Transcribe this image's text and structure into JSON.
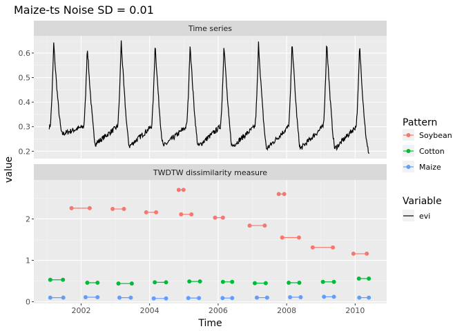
{
  "chart_data": {
    "type": "faceted line and segment chart",
    "title": "Maize-ts Noise SD =  0.01",
    "xlabel": "Time",
    "ylabel": "value",
    "x_ticks": [
      "2002",
      "2004",
      "2006",
      "2008",
      "2010"
    ],
    "grid": true,
    "legend_position": "right",
    "panels": [
      {
        "strip": "Time series",
        "y_ticks": [
          "0.2",
          "0.3",
          "0.4",
          "0.5",
          "0.6"
        ],
        "ylim": [
          0.17,
          0.67
        ],
        "series": [
          {
            "name": "evi",
            "type": "line",
            "color": "#000000",
            "peaks": [
              {
                "year": 2001.2,
                "base": 0.24,
                "peak": 0.64
              },
              {
                "year": 2002.18,
                "base": 0.2,
                "peak": 0.63
              },
              {
                "year": 2003.17,
                "base": 0.19,
                "peak": 0.65
              },
              {
                "year": 2004.16,
                "base": 0.19,
                "peak": 0.64
              },
              {
                "year": 2005.18,
                "base": 0.19,
                "peak": 0.64
              },
              {
                "year": 2006.17,
                "base": 0.19,
                "peak": 0.64
              },
              {
                "year": 2007.18,
                "base": 0.18,
                "peak": 0.64
              },
              {
                "year": 2008.16,
                "base": 0.18,
                "peak": 0.65
              },
              {
                "year": 2009.17,
                "base": 0.18,
                "peak": 0.65
              },
              {
                "year": 2010.13,
                "base": 0.18,
                "peak": 0.63
              }
            ],
            "start_value": 0.3,
            "end_value": 0.19,
            "x_range": [
              2001.07,
              2010.41
            ]
          }
        ]
      },
      {
        "strip": "TWDTW dissimilarity measure",
        "y_ticks": [
          "0",
          "1",
          "2"
        ],
        "ylim": [
          -0.04,
          2.94
        ],
        "series": [
          {
            "name": "Soybean",
            "color": "#F8766D",
            "segments": [
              {
                "from": 2001.72,
                "to": 2002.25,
                "value": 2.26
              },
              {
                "from": 2002.92,
                "to": 2003.25,
                "value": 2.24
              },
              {
                "from": 2003.9,
                "to": 2004.19,
                "value": 2.16
              },
              {
                "from": 2004.85,
                "to": 2004.99,
                "value": 2.7
              },
              {
                "from": 2004.92,
                "to": 2005.22,
                "value": 2.11
              },
              {
                "from": 2005.91,
                "to": 2006.14,
                "value": 2.03
              },
              {
                "from": 2006.92,
                "to": 2007.36,
                "value": 1.84
              },
              {
                "from": 2007.77,
                "to": 2007.93,
                "value": 2.6
              },
              {
                "from": 2007.87,
                "to": 2008.36,
                "value": 1.55
              },
              {
                "from": 2008.76,
                "to": 2009.35,
                "value": 1.31
              },
              {
                "from": 2009.95,
                "to": 2010.34,
                "value": 1.16
              }
            ]
          },
          {
            "name": "Cotton",
            "color": "#00BA38",
            "segments": [
              {
                "from": 2001.1,
                "to": 2001.47,
                "value": 0.53
              },
              {
                "from": 2002.18,
                "to": 2002.48,
                "value": 0.46
              },
              {
                "from": 2003.09,
                "to": 2003.48,
                "value": 0.44
              },
              {
                "from": 2004.15,
                "to": 2004.48,
                "value": 0.47
              },
              {
                "from": 2005.16,
                "to": 2005.47,
                "value": 0.49
              },
              {
                "from": 2006.14,
                "to": 2006.41,
                "value": 0.48
              },
              {
                "from": 2007.07,
                "to": 2007.39,
                "value": 0.45
              },
              {
                "from": 2008.06,
                "to": 2008.37,
                "value": 0.46
              },
              {
                "from": 2009.06,
                "to": 2009.38,
                "value": 0.48
              },
              {
                "from": 2010.11,
                "to": 2010.4,
                "value": 0.56
              }
            ]
          },
          {
            "name": "Maize",
            "color": "#619CFF",
            "segments": [
              {
                "from": 2001.1,
                "to": 2001.48,
                "value": 0.1
              },
              {
                "from": 2002.13,
                "to": 2002.48,
                "value": 0.11
              },
              {
                "from": 2003.12,
                "to": 2003.45,
                "value": 0.1
              },
              {
                "from": 2004.12,
                "to": 2004.48,
                "value": 0.08
              },
              {
                "from": 2005.13,
                "to": 2005.44,
                "value": 0.09
              },
              {
                "from": 2006.13,
                "to": 2006.41,
                "value": 0.09
              },
              {
                "from": 2007.13,
                "to": 2007.43,
                "value": 0.1
              },
              {
                "from": 2008.1,
                "to": 2008.41,
                "value": 0.11
              },
              {
                "from": 2009.09,
                "to": 2009.38,
                "value": 0.12
              },
              {
                "from": 2010.12,
                "to": 2010.4,
                "value": 0.1
              }
            ]
          }
        ]
      }
    ],
    "x_range": [
      2000.62,
      2010.92
    ],
    "legends": [
      {
        "title": "Pattern",
        "entries": [
          "Soybean",
          "Cotton",
          "Maize"
        ],
        "colors": [
          "#F8766D",
          "#00BA38",
          "#619CFF"
        ],
        "kind": "point-line"
      },
      {
        "title": "Variable",
        "entries": [
          "evi"
        ],
        "colors": [
          "#000000"
        ],
        "kind": "line"
      }
    ]
  }
}
